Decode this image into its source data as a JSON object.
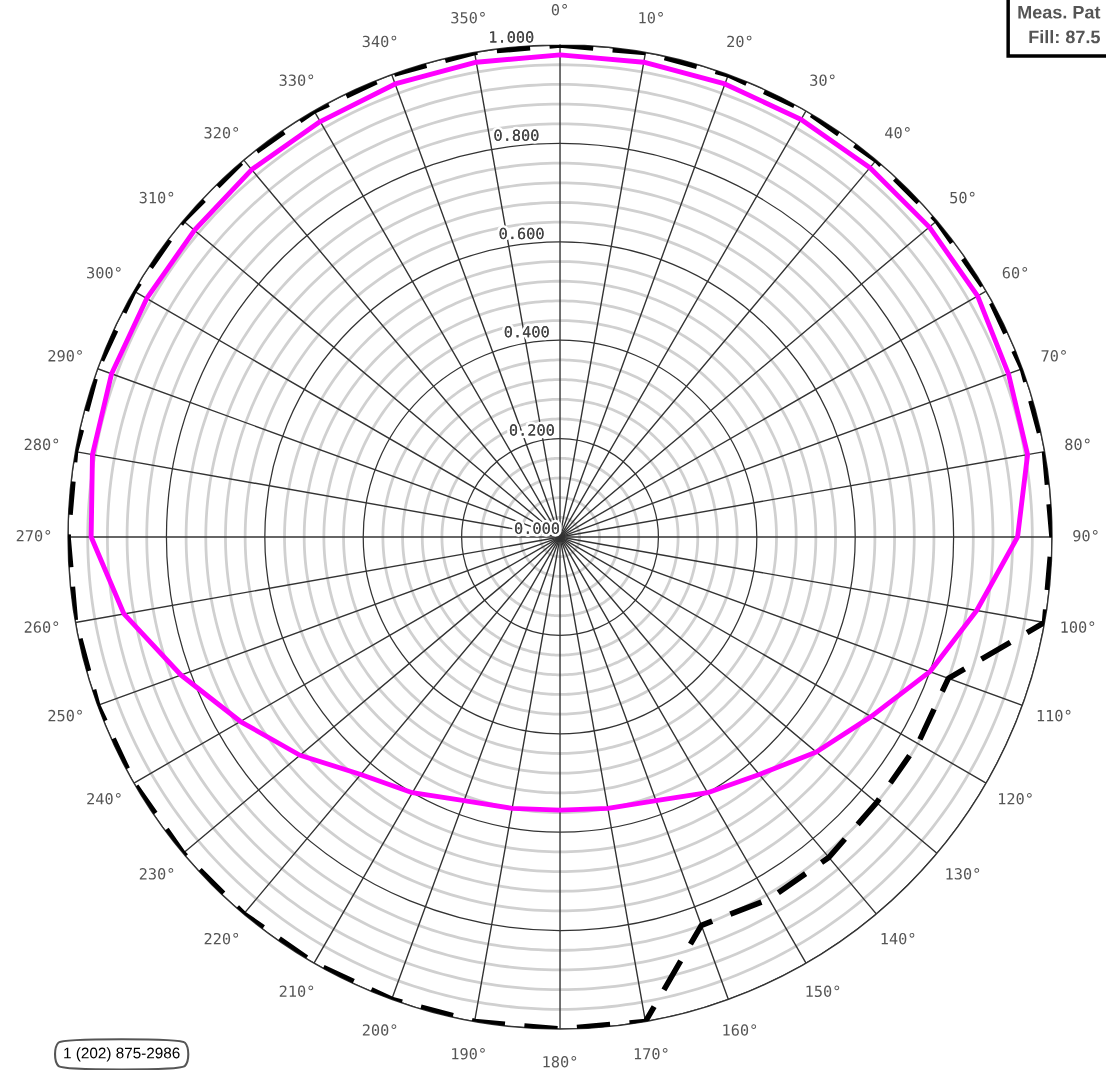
{
  "chart_data": {
    "type": "radar",
    "categories": [
      "0°",
      "10°",
      "20°",
      "30°",
      "40°",
      "50°",
      "60°",
      "70°",
      "80°",
      "90°",
      "100°",
      "110°",
      "120°",
      "130°",
      "140°",
      "150°",
      "160°",
      "170°",
      "180°",
      "190°",
      "200°",
      "210°",
      "220°",
      "230°",
      "240°",
      "250°",
      "260°",
      "270°",
      "280°",
      "290°",
      "300°",
      "310°",
      "320°",
      "330°",
      "340°",
      "350°"
    ],
    "series": [
      {
        "color": "#ff00ff",
        "line_style": "solid",
        "values": [
          0.98,
          0.98,
          0.98,
          0.98,
          0.98,
          0.98,
          0.98,
          0.97,
          0.965,
          0.93,
          0.86,
          0.8,
          0.73,
          0.68,
          0.63,
          0.6,
          0.57,
          0.56,
          0.555,
          0.56,
          0.57,
          0.6,
          0.63,
          0.69,
          0.75,
          0.82,
          0.9,
          0.953,
          0.965,
          0.97,
          0.97,
          0.97,
          0.975,
          0.975,
          0.98,
          0.98
        ]
      },
      {
        "color": "#000000",
        "line_style": "dashed",
        "values": [
          1.0,
          1.0,
          1.0,
          1.0,
          1.0,
          1.0,
          1.0,
          1.0,
          1.0,
          1.0,
          1.0,
          0.84,
          0.84,
          0.84,
          0.85,
          0.85,
          0.84,
          1.0,
          1.0,
          1.0,
          1.0,
          1.0,
          1.0,
          1.0,
          1.0,
          1.0,
          1.0,
          1.0,
          1.0,
          1.0,
          1.0,
          1.0,
          1.0,
          1.0,
          1.0,
          1.0
        ]
      }
    ],
    "ylim": [
      0,
      1
    ],
    "yticks": [
      {
        "value": 0,
        "label": "0.000"
      },
      {
        "value": 0.2,
        "label": "0.200"
      },
      {
        "value": 0.4,
        "label": "0.400"
      },
      {
        "value": 0.6,
        "label": "0.600"
      },
      {
        "value": 0.8,
        "label": "0.800"
      },
      {
        "value": 1.0,
        "label": "1.000"
      }
    ],
    "grid": true,
    "annotations": [
      "Meas. Pat",
      "Fill: 87.5",
      "1 (202) 875-2986"
    ]
  }
}
